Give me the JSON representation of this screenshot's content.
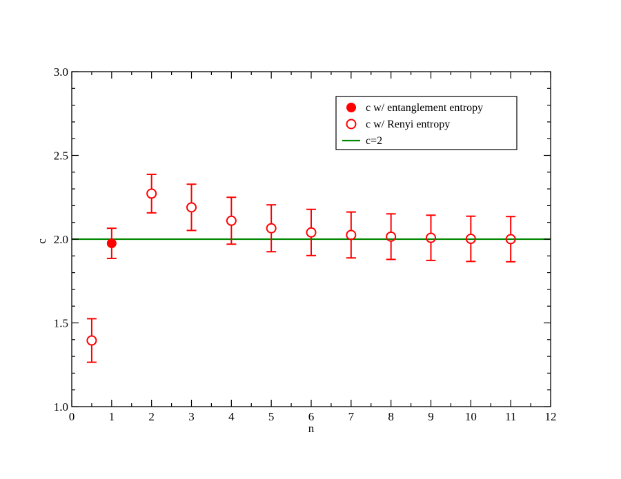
{
  "chart_data": {
    "type": "scatter",
    "title": "",
    "xlabel": "n",
    "ylabel": "c",
    "xlim": [
      0,
      12
    ],
    "ylim": [
      1.0,
      3.0
    ],
    "x_ticks": [
      0,
      1,
      2,
      3,
      4,
      5,
      6,
      7,
      8,
      9,
      10,
      11,
      12
    ],
    "x_tick_labels": [
      "0",
      "1",
      "2",
      "3",
      "4",
      "5",
      "6",
      "7",
      "8",
      "9",
      "10",
      "11",
      "12"
    ],
    "y_ticks": [
      1.0,
      1.5,
      2.0,
      2.5,
      3.0
    ],
    "y_tick_labels": [
      "1.0",
      "1.5",
      "2.0",
      "2.5",
      "3.0"
    ],
    "x_minor_step": 0.5,
    "y_minor_step": 0.1,
    "grid": false,
    "legend_position": "top-right",
    "series": [
      {
        "name": "c w/ entanglement entropy",
        "marker": "filled-circle",
        "color": "#ff0000",
        "points": [
          {
            "x": 1,
            "y": 1.975,
            "err": 0.09
          }
        ]
      },
      {
        "name": "c w/ Renyi entropy",
        "marker": "open-circle",
        "color": "#ff0000",
        "points": [
          {
            "x": 0.5,
            "y": 1.395,
            "err": 0.13
          },
          {
            "x": 2,
            "y": 2.272,
            "err": 0.115
          },
          {
            "x": 3,
            "y": 2.19,
            "err": 0.138
          },
          {
            "x": 4,
            "y": 2.11,
            "err": 0.14
          },
          {
            "x": 5,
            "y": 2.065,
            "err": 0.14
          },
          {
            "x": 6,
            "y": 2.04,
            "err": 0.138
          },
          {
            "x": 7,
            "y": 2.025,
            "err": 0.137
          },
          {
            "x": 8,
            "y": 2.015,
            "err": 0.136
          },
          {
            "x": 9,
            "y": 2.008,
            "err": 0.135
          },
          {
            "x": 10,
            "y": 2.002,
            "err": 0.135
          },
          {
            "x": 11,
            "y": 2.0,
            "err": 0.135
          }
        ]
      }
    ],
    "reference_lines": [
      {
        "name": "c=2",
        "y": 2.0,
        "color": "#008800"
      }
    ]
  }
}
